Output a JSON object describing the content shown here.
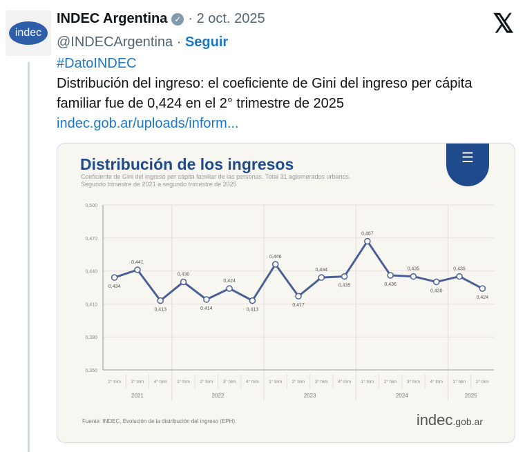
{
  "tweet": {
    "author": "INDEC Argentina",
    "date": "· 2 oct. 2025",
    "handle": "@INDECArgentina",
    "sep": " · ",
    "follow": "Seguir",
    "hashtag": "#DatoINDEC",
    "body": "Distribución del ingreso: el coeficiente de Gini del ingreso per cápita familiar fue de 0,424 en el 2° trimestre de 2025",
    "link": "indec.gob.ar/uploads/inform...",
    "avatar_text": "indec",
    "verified_icon": "verified-badge",
    "x_logo": "𝕏"
  },
  "card": {
    "source": "Fuente: INDEC, Evolución de la distribución del ingreso (EPH).",
    "watermark": "indec",
    "watermark_suffix": ".gob.ar",
    "badge_icon": "funnel-icon",
    "accent": "#1f4a8c",
    "line_color": "#4a5f95"
  },
  "chart_data": {
    "type": "line",
    "title": "Distribución de los ingresos",
    "subtitle": [
      "Coeficiente de Gini del ingreso per cápita familiar de las personas. Total 31 aglomerados urbanos.",
      "Segundo trimestre de 2021 a segundo trimestre de 2025"
    ],
    "categories": [
      "2° trim",
      "3° trim",
      "4° trim",
      "1° trim",
      "2° trim",
      "3° trim",
      "4° trim",
      "1° trim",
      "2° trim",
      "3° trim",
      "4° trim",
      "1° trim",
      "2° trim",
      "3° trim",
      "4° trim",
      "1° trim",
      "2° trim"
    ],
    "years": [
      {
        "label": "2021",
        "count": 3
      },
      {
        "label": "2022",
        "count": 4
      },
      {
        "label": "2023",
        "count": 4
      },
      {
        "label": "2024",
        "count": 4
      },
      {
        "label": "2025",
        "count": 2
      }
    ],
    "values": [
      0.434,
      0.441,
      0.413,
      0.43,
      0.414,
      0.424,
      0.413,
      0.446,
      0.417,
      0.434,
      0.435,
      0.467,
      0.436,
      0.435,
      0.43,
      0.435,
      0.424
    ],
    "labels": [
      "0,434",
      "0,441",
      "0,413",
      "0,430",
      "0,414",
      "0,424",
      "0,413",
      "0,446",
      "0,417",
      "0,434",
      "0,435",
      "0,467",
      "0,436",
      "0,435",
      "0,430",
      "0,435",
      "0,424"
    ],
    "label_pos": [
      "below",
      "above",
      "below",
      "above",
      "below",
      "above",
      "below",
      "above",
      "below",
      "above",
      "below",
      "above",
      "below",
      "above",
      "below",
      "above",
      "below"
    ],
    "yticks": [
      {
        "v": 0.5,
        "t": "0,500"
      },
      {
        "v": 0.47,
        "t": "0,470"
      },
      {
        "v": 0.44,
        "t": "0,440"
      },
      {
        "v": 0.41,
        "t": "0,410"
      },
      {
        "v": 0.38,
        "t": "0,380"
      },
      {
        "v": 0.35,
        "t": "0,350"
      }
    ],
    "ylim": [
      0.35,
      0.5
    ]
  }
}
